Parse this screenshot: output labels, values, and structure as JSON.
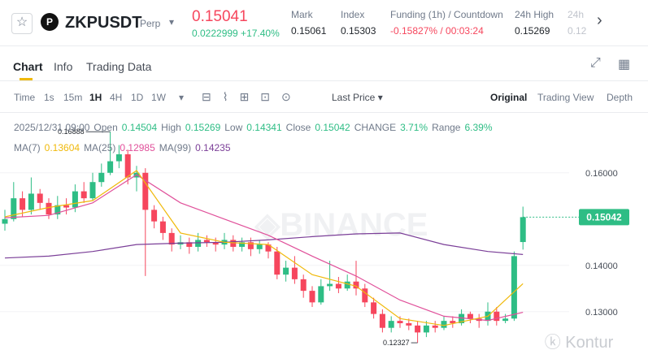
{
  "header": {
    "symbol": "ZKPUSDT",
    "contract": "Perp",
    "price": "0.15041",
    "change": "0.0222999 +17.40%",
    "stats": [
      {
        "label": "Mark",
        "value": "0.15061"
      },
      {
        "label": "Index",
        "value": "0.15303"
      },
      {
        "label": "Funding (1h) / Countdown",
        "value": "-0.15827% / 00:03:24"
      },
      {
        "label": "24h High",
        "value": "0.15269"
      },
      {
        "label": "24h",
        "value": "0.12"
      }
    ]
  },
  "tabs": [
    "Chart",
    "Info",
    "Trading Data"
  ],
  "toolbar": {
    "intervals": [
      "Time",
      "1s",
      "15m",
      "1H",
      "4H",
      "1D",
      "1W"
    ],
    "price_mode": "Last Price",
    "views": [
      "Original",
      "Trading View",
      "Depth"
    ]
  },
  "info": {
    "date": "2025/12/31 09:00",
    "fields": [
      {
        "label": "Open",
        "value": "0.14504"
      },
      {
        "label": "High",
        "value": "0.15269"
      },
      {
        "label": "Low",
        "value": "0.14341"
      },
      {
        "label": "Close",
        "value": "0.15042"
      },
      {
        "label": "CHANGE",
        "value": "3.71%"
      },
      {
        "label": "Range",
        "value": "6.39%"
      }
    ],
    "ma": [
      {
        "label": "MA(7)",
        "value": "0.13604"
      },
      {
        "label": "MA(25)",
        "value": "0.12985"
      },
      {
        "label": "MA(99)",
        "value": "0.14235"
      }
    ]
  },
  "chart_data": {
    "type": "candlestick",
    "ylim": [
      0.1189,
      0.1719
    ],
    "yticks": [
      {
        "value": 0.13,
        "label": "0.13000"
      },
      {
        "value": 0.14,
        "label": "0.14000"
      },
      {
        "value": 0.16,
        "label": "0.16000"
      }
    ],
    "last_price": {
      "value": 0.15042,
      "label": "0.15042"
    },
    "annotations": [
      {
        "text": "0.16888",
        "index": 12
      },
      {
        "text": "0.12327",
        "index": 47
      }
    ],
    "open": [
      0.149,
      0.15,
      0.1545,
      0.152,
      0.1555,
      0.1535,
      0.151,
      0.153,
      0.1525,
      0.156,
      0.1545,
      0.158,
      0.16,
      0.1625,
      0.164,
      0.159,
      0.16,
      0.152,
      0.1495,
      0.147,
      0.1445,
      0.145,
      0.144,
      0.1455,
      0.145,
      0.1445,
      0.1455,
      0.144,
      0.145,
      0.1435,
      0.1445,
      0.143,
      0.138,
      0.1395,
      0.137,
      0.1345,
      0.132,
      0.1355,
      0.136,
      0.135,
      0.1365,
      0.135,
      0.132,
      0.1295,
      0.1265,
      0.128,
      0.1275,
      0.127,
      0.1255,
      0.127,
      0.1265,
      0.128,
      0.1275,
      0.1295,
      0.1285,
      0.128,
      0.13,
      0.128,
      0.1285,
      0.14504
    ],
    "high": [
      0.152,
      0.158,
      0.156,
      0.159,
      0.1565,
      0.1545,
      0.155,
      0.1545,
      0.1575,
      0.158,
      0.16,
      0.162,
      0.16888,
      0.166,
      0.165,
      0.1615,
      0.161,
      0.153,
      0.1505,
      0.148,
      0.1465,
      0.146,
      0.147,
      0.1465,
      0.146,
      0.147,
      0.1465,
      0.146,
      0.146,
      0.1455,
      0.145,
      0.144,
      0.141,
      0.142,
      0.138,
      0.1355,
      0.137,
      0.141,
      0.1375,
      0.138,
      0.141,
      0.136,
      0.133,
      0.1305,
      0.129,
      0.129,
      0.1285,
      0.128,
      0.128,
      0.128,
      0.129,
      0.129,
      0.1305,
      0.13,
      0.1295,
      0.132,
      0.131,
      0.1295,
      0.143,
      0.15269
    ],
    "low": [
      0.1475,
      0.1495,
      0.1505,
      0.151,
      0.152,
      0.15,
      0.15,
      0.151,
      0.1515,
      0.1535,
      0.154,
      0.157,
      0.1595,
      0.161,
      0.1575,
      0.156,
      0.1377,
      0.148,
      0.1455,
      0.143,
      0.1435,
      0.1425,
      0.143,
      0.144,
      0.143,
      0.1435,
      0.143,
      0.143,
      0.142,
      0.1425,
      0.1415,
      0.137,
      0.1365,
      0.136,
      0.133,
      0.131,
      0.1315,
      0.1345,
      0.134,
      0.1345,
      0.1335,
      0.131,
      0.1285,
      0.1255,
      0.1255,
      0.1265,
      0.126,
      0.12327,
      0.1245,
      0.1255,
      0.126,
      0.1265,
      0.127,
      0.1275,
      0.1265,
      0.127,
      0.127,
      0.1275,
      0.128,
      0.14341
    ],
    "close": [
      0.15,
      0.1545,
      0.152,
      0.1555,
      0.1535,
      0.151,
      0.153,
      0.1525,
      0.156,
      0.1545,
      0.158,
      0.16,
      0.1625,
      0.164,
      0.159,
      0.16,
      0.152,
      0.1495,
      0.147,
      0.1445,
      0.145,
      0.144,
      0.1455,
      0.145,
      0.1445,
      0.1455,
      0.144,
      0.145,
      0.1435,
      0.1445,
      0.143,
      0.138,
      0.1395,
      0.137,
      0.1345,
      0.132,
      0.1355,
      0.136,
      0.135,
      0.1365,
      0.135,
      0.132,
      0.1295,
      0.1265,
      0.128,
      0.1275,
      0.127,
      0.1255,
      0.127,
      0.1265,
      0.128,
      0.1275,
      0.1295,
      0.1285,
      0.128,
      0.13,
      0.128,
      0.1285,
      0.142,
      0.15042
    ],
    "ma_index": [
      0,
      5,
      10,
      15,
      20,
      25,
      30,
      35,
      40,
      45,
      50,
      55,
      59
    ],
    "series": [
      {
        "name": "MA(99)",
        "color": "#7b3f98",
        "values": [
          0.1416,
          0.142,
          0.143,
          0.1445,
          0.1448,
          0.145,
          0.1455,
          0.1462,
          0.1468,
          0.147,
          0.1445,
          0.143,
          0.14235
        ]
      },
      {
        "name": "MA(25)",
        "color": "#e0509a",
        "values": [
          0.1503,
          0.1508,
          0.1535,
          0.1596,
          0.1535,
          0.15,
          0.1465,
          0.142,
          0.1377,
          0.1325,
          0.129,
          0.1281,
          0.12985
        ]
      },
      {
        "name": "MA(7)",
        "color": "#f0b90b",
        "values": [
          0.1505,
          0.1525,
          0.154,
          0.1605,
          0.147,
          0.145,
          0.1445,
          0.138,
          0.1355,
          0.1285,
          0.127,
          0.129,
          0.13604
        ]
      }
    ]
  }
}
